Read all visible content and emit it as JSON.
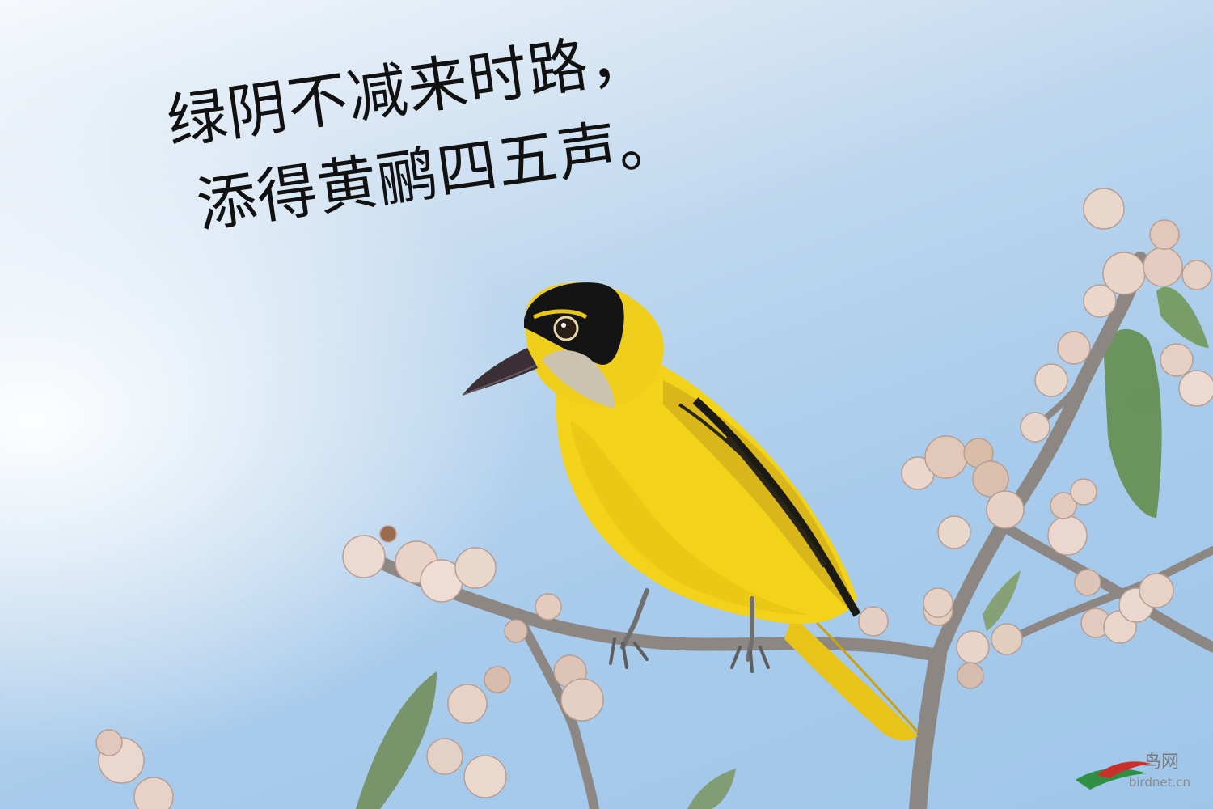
{
  "poem": {
    "line1": "绿阴不减来时路，",
    "line2": "添得黄鹂四五声。"
  },
  "watermark": {
    "brand_cn": "鸟网",
    "brand_en": "birdnet.cn"
  },
  "subject": {
    "icon": "oriole-bird-photo"
  },
  "colors": {
    "sky": "#a9cbeb",
    "bird_yellow": "#f3d21a",
    "branch": "#8d8783",
    "fruit": "#e6cfc4"
  }
}
